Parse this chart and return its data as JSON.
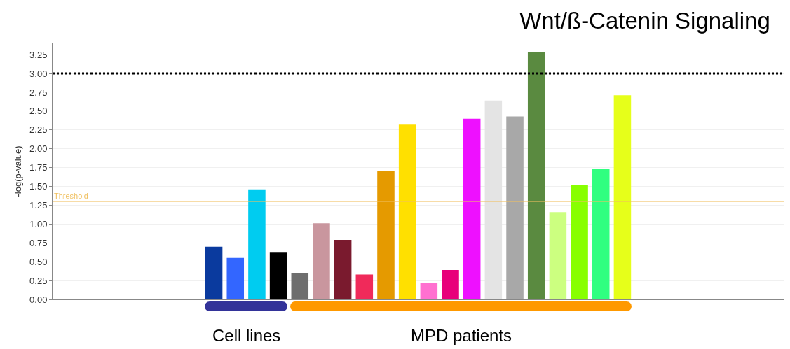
{
  "chart_data": {
    "type": "bar",
    "title": "Wnt/ß-Catenin Signaling",
    "ylabel": "-log(p-value)",
    "categories": [
      null,
      null,
      null,
      null,
      null,
      null,
      null,
      null,
      null,
      null,
      null,
      null,
      null,
      null,
      null,
      null,
      null,
      null,
      null,
      null,
      null,
      null,
      null,
      null,
      null,
      null,
      null,
      null,
      null,
      null,
      null,
      null,
      null,
      null
    ],
    "values": [
      null,
      null,
      null,
      null,
      null,
      null,
      null,
      0.7,
      0.55,
      1.46,
      0.62,
      0.35,
      1.01,
      0.79,
      0.33,
      1.7,
      2.32,
      0.22,
      0.39,
      2.4,
      2.64,
      2.43,
      3.28,
      1.16,
      1.52,
      1.73,
      2.71,
      null,
      null,
      null,
      null,
      null,
      null,
      null
    ],
    "colors": [
      "#ffffff",
      "#ffffff",
      "#ffffff",
      "#ffffff",
      "#ffffff",
      "#ffffff",
      "#ffffff",
      "#0a3a9e",
      "#3366ff",
      "#00ccf0",
      "#000000",
      "#6e6e6e",
      "#c9969e",
      "#7a1a2e",
      "#f02a5a",
      "#e59a00",
      "#ffe000",
      "#ff70d0",
      "#e8007a",
      "#ee10ff",
      "#e4e4e4",
      "#a8a8a8",
      "#5a8a40",
      "#ccff80",
      "#88ff00",
      "#30ff80",
      "#e6ff1a",
      "#ffffff",
      "#ffffff",
      "#ffffff",
      "#ffffff",
      "#ffffff",
      "#ffffff",
      "#ffffff"
    ],
    "ylim": [
      0,
      3.4
    ],
    "yticks": [
      {
        "value": 0,
        "label": "0.00"
      },
      {
        "value": 0.25,
        "label": "0.25"
      },
      {
        "value": 0.5,
        "label": "0.50"
      },
      {
        "value": 0.75,
        "label": "0.75"
      },
      {
        "value": 1,
        "label": "1.00"
      },
      {
        "value": 1.25,
        "label": "1.25"
      },
      {
        "value": 1.5,
        "label": "1.50"
      },
      {
        "value": 1.75,
        "label": "1.75"
      },
      {
        "value": 2,
        "label": "2.00"
      },
      {
        "value": 2.25,
        "label": "2.25"
      },
      {
        "value": 2.5,
        "label": "2.50"
      },
      {
        "value": 2.75,
        "label": "2.75"
      },
      {
        "value": 3,
        "label": "3.00"
      },
      {
        "value": 3.25,
        "label": "3.25"
      }
    ],
    "ref_lines": [
      {
        "axis": "y",
        "value": 1.3,
        "label": "Threshold",
        "color": "#f0c060",
        "line_style": "solid"
      },
      {
        "axis": "y",
        "value": 3.0,
        "color": "#000000",
        "line_style": "dotted"
      }
    ],
    "annotations": [
      "Cell lines",
      "MPD patients"
    ],
    "grid": "y"
  }
}
